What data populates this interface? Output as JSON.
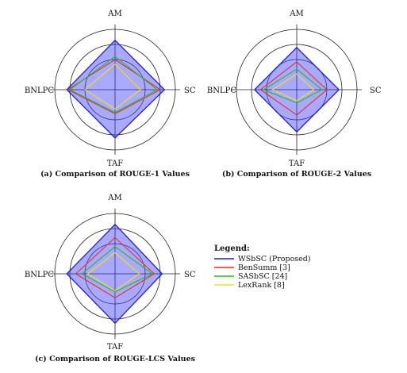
{
  "colors": {
    "WSbSC (Proposed)": "#1f1fd6",
    "WSbSC_fill": "#3333ff",
    "BenSumm [3]": "#e03030",
    "SASbSC [24]": "#22bb22",
    "LexRank [8]": "#f0e020"
  },
  "legend": {
    "title": "Legend:",
    "entries": [
      "WSbSC (Proposed)",
      "BenSumm [3]",
      "SASbSC [24]",
      "LexRank [8]"
    ]
  },
  "chart_data": [
    {
      "type": "radar",
      "caption": "(a) Comparison of ROUGE-1 Values",
      "axes": [
        "AM",
        "SC",
        "TAF",
        "BNLPC"
      ],
      "rmax": 1.0,
      "grid_rings": [
        0.5,
        0.75,
        1.0
      ],
      "series": [
        {
          "name": "WSbSC (Proposed)",
          "values": [
            0.82,
            0.82,
            0.8,
            0.8
          ],
          "filled": true
        },
        {
          "name": "BenSumm [3]",
          "values": [
            0.5,
            0.75,
            0.4,
            0.78
          ]
        },
        {
          "name": "SASbSC [24]",
          "values": [
            0.55,
            0.7,
            0.38,
            0.75
          ]
        },
        {
          "name": "LexRank [8]",
          "values": [
            0.42,
            0.42,
            0.32,
            0.5
          ]
        }
      ]
    },
    {
      "type": "radar",
      "caption": "(b) Comparison of ROUGE-2 Values",
      "axes": [
        "AM",
        "SC",
        "TAF",
        "BNLPC"
      ],
      "rmax": 1.0,
      "grid_rings": [
        0.5,
        0.75,
        1.0
      ],
      "series": [
        {
          "name": "WSbSC (Proposed)",
          "values": [
            0.7,
            0.7,
            0.7,
            0.7
          ],
          "filled": true
        },
        {
          "name": "BenSumm [3]",
          "values": [
            0.46,
            0.5,
            0.42,
            0.6
          ]
        },
        {
          "name": "SASbSC [24]",
          "values": [
            0.34,
            0.42,
            0.22,
            0.55
          ]
        },
        {
          "name": "LexRank [8]",
          "values": [
            0.26,
            0.28,
            0.18,
            0.4
          ]
        }
      ]
    },
    {
      "type": "radar",
      "caption": "(c) Comparison of ROUGE-LCS Values",
      "axes": [
        "AM",
        "SC",
        "TAF",
        "BNLPC"
      ],
      "rmax": 1.0,
      "grid_rings": [
        0.5,
        0.75,
        1.0
      ],
      "series": [
        {
          "name": "WSbSC (Proposed)",
          "values": [
            0.82,
            0.78,
            0.82,
            0.8
          ],
          "filled": true
        },
        {
          "name": "BenSumm [3]",
          "values": [
            0.6,
            0.65,
            0.4,
            0.65
          ]
        },
        {
          "name": "SASbSC [24]",
          "values": [
            0.45,
            0.62,
            0.3,
            0.55
          ]
        },
        {
          "name": "LexRank [8]",
          "values": [
            0.35,
            0.4,
            0.28,
            0.45
          ]
        }
      ]
    }
  ]
}
